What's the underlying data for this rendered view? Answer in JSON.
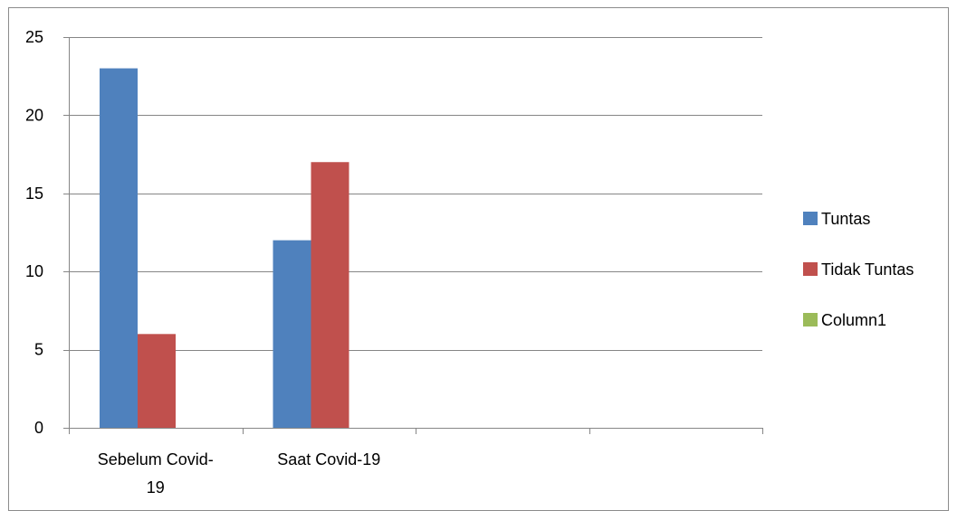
{
  "chart_data": {
    "type": "bar",
    "categories": [
      "Sebelum Covid-19",
      "Saat Covid-19",
      "",
      ""
    ],
    "category_label_lines": [
      [
        "Sebelum Covid-",
        "19"
      ],
      [
        "Saat Covid-19"
      ],
      [
        ""
      ],
      [
        ""
      ]
    ],
    "series": [
      {
        "name": "Tuntas",
        "values": [
          23,
          12,
          null,
          null
        ],
        "color": "#4F81BD"
      },
      {
        "name": "Tidak Tuntas",
        "values": [
          6,
          17,
          null,
          null
        ],
        "color": "#C0504D"
      },
      {
        "name": "Column1",
        "values": [
          null,
          null,
          null,
          null
        ],
        "color": "#9BBB59"
      }
    ],
    "ylim": [
      0,
      25
    ],
    "yticks": [
      0,
      5,
      10,
      15,
      20,
      25
    ],
    "grid": true,
    "legend_position": "right",
    "title": "",
    "xlabel": "",
    "ylabel": ""
  }
}
